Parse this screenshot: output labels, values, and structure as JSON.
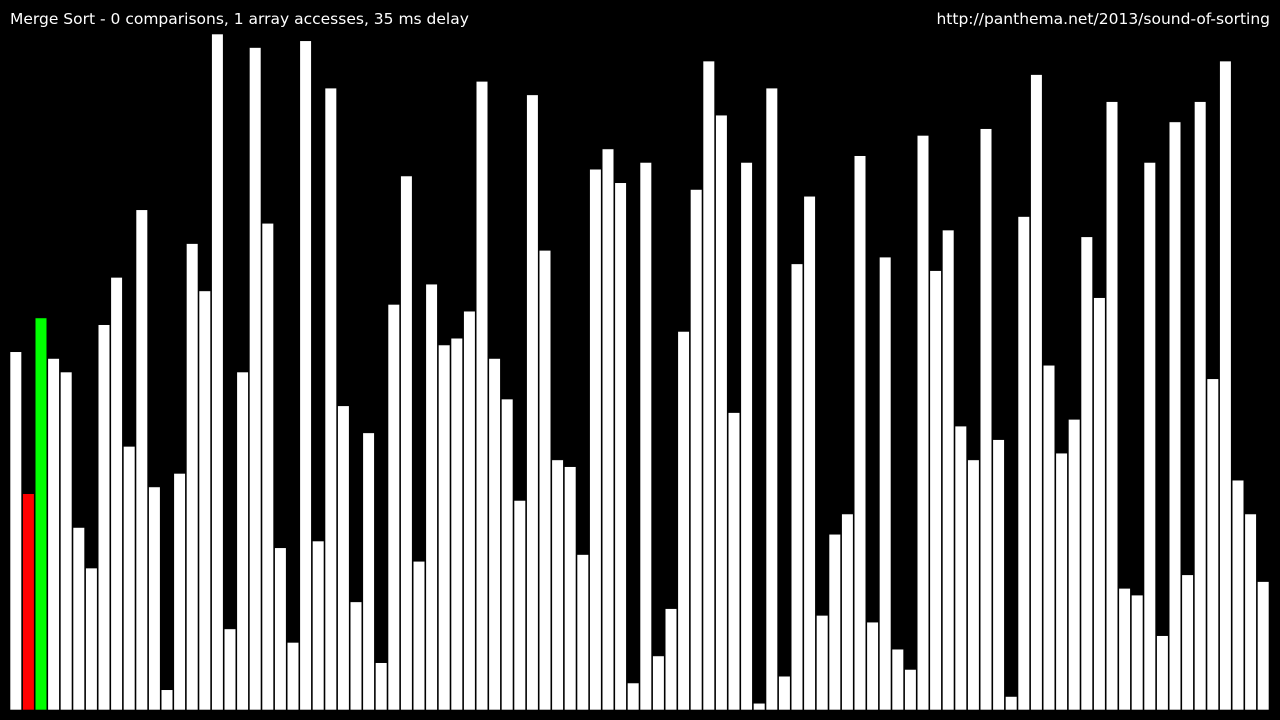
{
  "header": {
    "status": "Merge Sort - 0 comparisons, 1 array accesses, 35 ms delay",
    "url": "http://panthema.net/2013/sound-of-sorting"
  },
  "colors": {
    "background": "#000000",
    "bar": "#ffffff",
    "bar_outline": "#000000",
    "compare": "#ff0000",
    "access": "#00ff00"
  },
  "chart_data": {
    "type": "bar",
    "values": [
      53,
      32,
      58,
      52,
      50,
      27,
      21,
      57,
      64,
      39,
      74,
      33,
      3,
      35,
      69,
      62,
      100,
      12,
      50,
      98,
      72,
      24,
      10,
      99,
      25,
      92,
      45,
      16,
      41,
      7,
      60,
      79,
      22,
      63,
      54,
      55,
      59,
      93,
      52,
      46,
      31,
      91,
      68,
      37,
      36,
      23,
      80,
      83,
      78,
      4,
      81,
      8,
      15,
      56,
      77,
      96,
      88,
      44,
      81,
      1,
      92,
      5,
      66,
      76,
      14,
      26,
      29,
      82,
      13,
      67,
      9,
      6,
      85,
      65,
      71,
      42,
      37,
      86,
      40,
      2,
      73,
      94,
      51,
      38,
      43,
      70,
      61,
      90,
      18,
      17,
      81,
      11,
      87,
      20,
      90,
      49,
      96,
      34,
      29,
      19
    ],
    "highlight": {
      "compare_index": 1,
      "access_index": 2
    },
    "ylim": [
      0,
      100
    ]
  }
}
